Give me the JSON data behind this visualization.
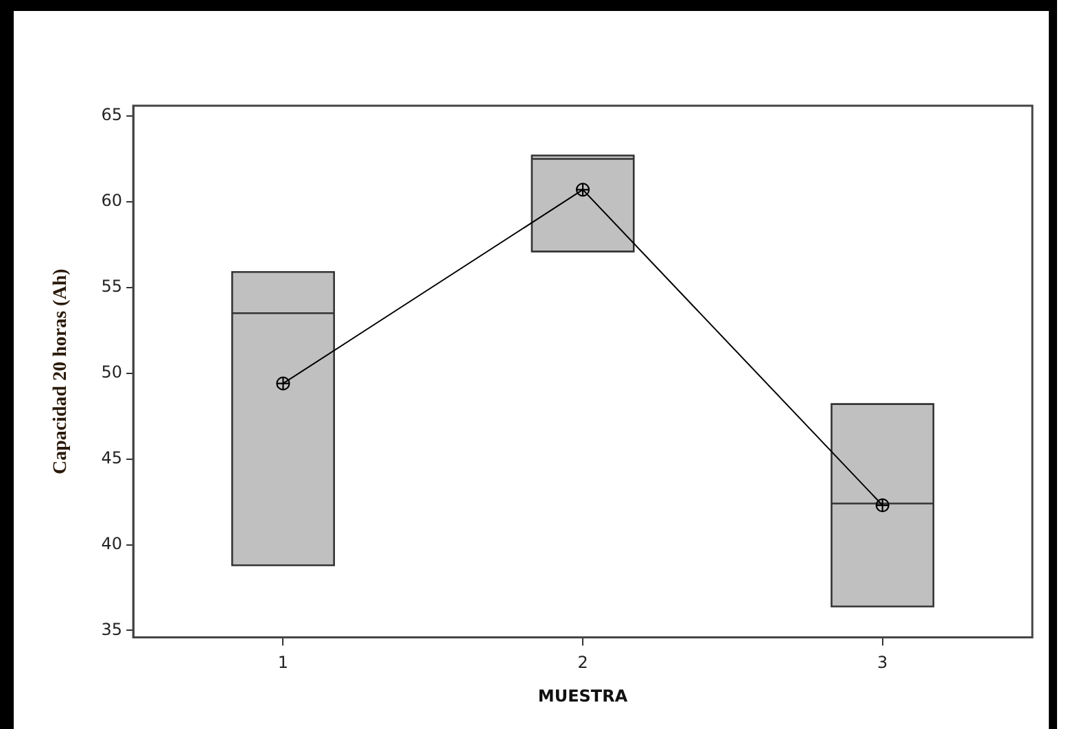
{
  "chart_data": {
    "type": "box",
    "xlabel": "MUESTRA",
    "ylabel": "Capacidad 20 horas (Ah)",
    "categories": [
      "1",
      "2",
      "3"
    ],
    "series": [
      {
        "type": "box",
        "color": "#c0c0c0",
        "boxes": [
          {
            "low": 38.8,
            "q1": 38.8,
            "median": 53.5,
            "q3": 55.9,
            "high": 55.9,
            "mean": 49.4
          },
          {
            "low": 57.1,
            "q1": 57.1,
            "median": 62.5,
            "q3": 62.7,
            "high": 62.7,
            "mean": 60.7
          },
          {
            "low": 36.4,
            "q1": 36.4,
            "median": 42.4,
            "q3": 48.2,
            "high": 48.2,
            "mean": 42.3
          }
        ]
      },
      {
        "type": "line",
        "color": "#000000",
        "values": [
          49.4,
          60.7,
          42.3
        ]
      }
    ],
    "ylim": [
      34.6,
      65.6
    ],
    "yticks": [
      35,
      40,
      45,
      50,
      55,
      60,
      65
    ]
  }
}
